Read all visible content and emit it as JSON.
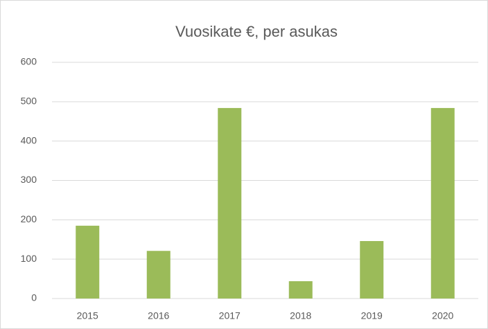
{
  "chart_data": {
    "type": "bar",
    "title": "Vuosikate €, per asukas",
    "categories": [
      "2015",
      "2016",
      "2017",
      "2018",
      "2019",
      "2020"
    ],
    "values": [
      185,
      121,
      484,
      44,
      146,
      484
    ],
    "color": "#9bbb59",
    "ylim": [
      0,
      600
    ],
    "yticks": [
      0,
      100,
      200,
      300,
      400,
      500,
      600
    ],
    "grid": true
  }
}
